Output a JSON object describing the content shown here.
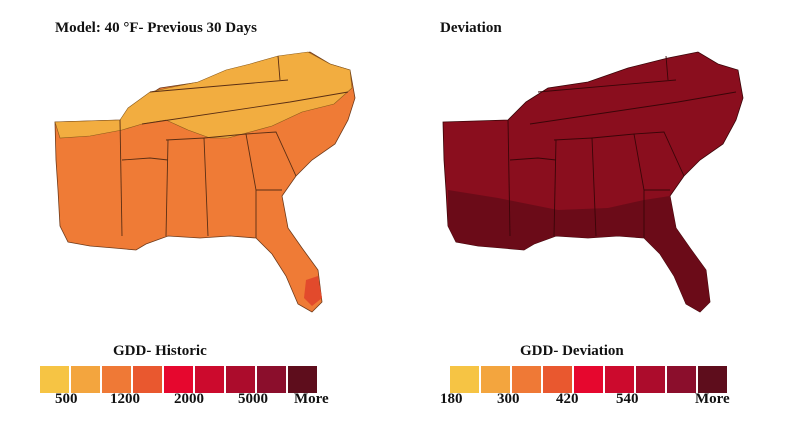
{
  "panels": {
    "historic": {
      "title": "Model: 40 °F- Previous 30 Days",
      "legend_title": "GDD- Historic",
      "colors": [
        "#f6c444",
        "#f3a53e",
        "#ef7936",
        "#e9582f",
        "#e6072e",
        "#cc0a2d",
        "#ac0c2c",
        "#8b0e2c",
        "#5e0d1c"
      ],
      "ticks": [
        "500",
        "1200",
        "2000",
        "5000",
        "More"
      ]
    },
    "deviation": {
      "title": "Deviation",
      "legend_title": "GDD- Deviation",
      "colors": [
        "#f6c444",
        "#f3a53e",
        "#ef7936",
        "#e9582f",
        "#e6072e",
        "#cc0a2d",
        "#ac0c2c",
        "#8b0e2c",
        "#5e0d1c"
      ],
      "ticks": [
        "180",
        "300",
        "420",
        "540",
        "More"
      ]
    }
  },
  "map_colors": {
    "low": "#f2ad40",
    "mid": "#ef7b36",
    "high": "#e24a2c",
    "dev_main": "#8a0e1e",
    "dev_south": "#6b0b18"
  }
}
